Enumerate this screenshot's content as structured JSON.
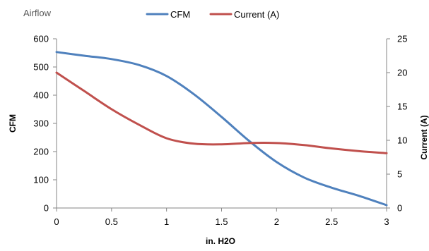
{
  "chart_data": {
    "type": "line",
    "title": "Airflow",
    "xlabel": "in. H2O",
    "ylabel": "CFM",
    "y2label": "Current (A)",
    "xlim": [
      0,
      3
    ],
    "ylim": [
      0,
      600
    ],
    "y2lim": [
      0,
      25
    ],
    "x_ticks": [
      "0",
      "0.5",
      "1",
      "1.5",
      "2",
      "2.5",
      "3"
    ],
    "y_ticks": [
      "0",
      "100",
      "200",
      "300",
      "400",
      "500",
      "600"
    ],
    "y2_ticks": [
      "0",
      "5",
      "10",
      "15",
      "20",
      "25"
    ],
    "grid": false,
    "legend_position": "top",
    "series": [
      {
        "name": "CFM",
        "axis": "left",
        "color": "#4F81BD",
        "x": [
          0,
          0.25,
          0.5,
          0.75,
          1.0,
          1.25,
          1.5,
          1.75,
          2.0,
          2.25,
          2.5,
          2.75,
          3.0
        ],
        "y": [
          553,
          540,
          528,
          507,
          468,
          403,
          323,
          238,
          163,
          108,
          72,
          43,
          10
        ]
      },
      {
        "name": "Current (A)",
        "axis": "right",
        "color": "#C0504D",
        "x": [
          0,
          0.25,
          0.5,
          0.75,
          1.0,
          1.25,
          1.5,
          1.75,
          2.0,
          2.25,
          2.5,
          2.75,
          3.0
        ],
        "y": [
          20.0,
          17.3,
          14.6,
          12.3,
          10.3,
          9.5,
          9.4,
          9.6,
          9.6,
          9.3,
          8.8,
          8.4,
          8.1
        ]
      }
    ]
  }
}
